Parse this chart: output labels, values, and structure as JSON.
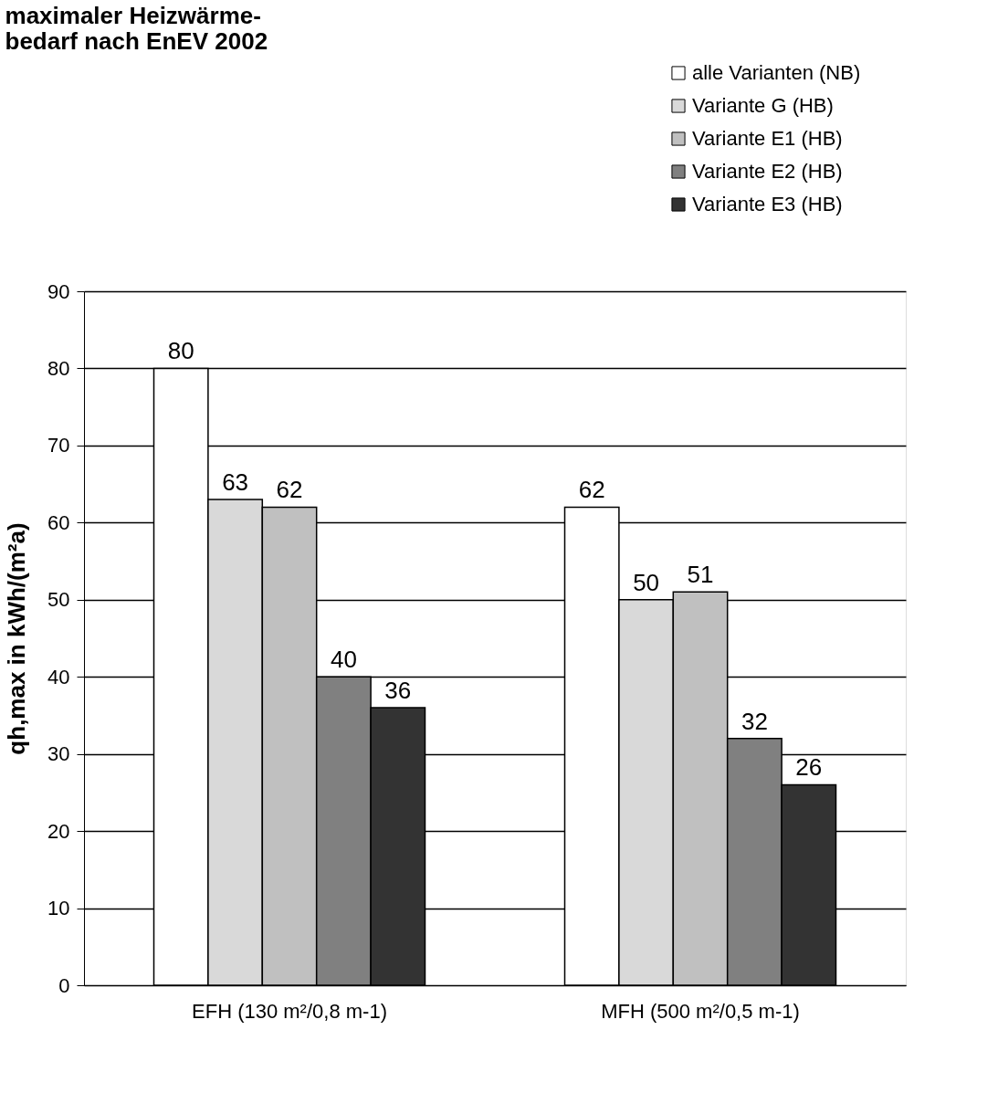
{
  "chart_data": {
    "type": "bar",
    "title": "maximaler Heizwärme-\nbedarf nach EnEV 2002",
    "ylabel": "qh,max in kWh/(m²a)",
    "categories": [
      "EFH (130 m²/0,8 m-1)",
      "MFH (500 m²/0,5 m-1)"
    ],
    "series": [
      {
        "name": "alle Varianten (NB)",
        "color": "#ffffff",
        "values": [
          80,
          62
        ]
      },
      {
        "name": "Variante G (HB)",
        "color": "#d9d9d9",
        "values": [
          63,
          50
        ]
      },
      {
        "name": "Variante E1 (HB)",
        "color": "#c0c0c0",
        "values": [
          62,
          51
        ]
      },
      {
        "name": "Variante E2 (HB)",
        "color": "#808080",
        "values": [
          40,
          32
        ]
      },
      {
        "name": "Variante E3 (HB)",
        "color": "#333333",
        "values": [
          36,
          26
        ]
      }
    ],
    "ylim": [
      0,
      90
    ],
    "yticks": [
      0,
      10,
      20,
      30,
      40,
      50,
      60,
      70,
      80,
      90
    ],
    "grid": "y",
    "legend": "top right",
    "data_labels": true
  }
}
